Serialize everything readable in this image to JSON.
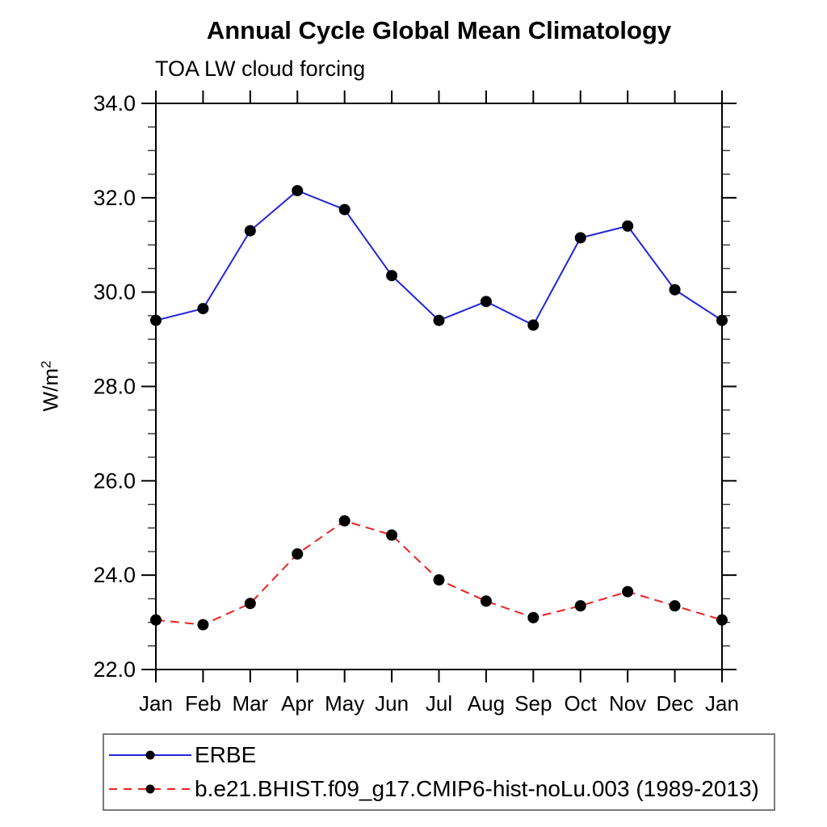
{
  "chart": {
    "title": "Annual Cycle Global Mean Climatology",
    "subtitle": "TOA LW cloud forcing",
    "ylabel_base": "W/m",
    "ylabel_exponent": "2"
  },
  "chart_data": {
    "type": "line",
    "title": "Annual Cycle Global Mean Climatology",
    "subtitle": "TOA LW cloud forcing",
    "xlabel": "",
    "ylabel": "W/m²",
    "categories": [
      "Jan",
      "Feb",
      "Mar",
      "Apr",
      "May",
      "Jun",
      "Jul",
      "Aug",
      "Sep",
      "Oct",
      "Nov",
      "Dec",
      "Jan"
    ],
    "ylim": [
      22.0,
      34.0
    ],
    "ytick_major_interval": 2.0,
    "ytick_minor_interval": 0.5,
    "ytick_labels": [
      "22.0",
      "24.0",
      "26.0",
      "28.0",
      "30.0",
      "32.0",
      "34.0"
    ],
    "grid": false,
    "legend_position": "bottom-left-box",
    "frame_color": "#000000",
    "series": [
      {
        "name": "ERBE",
        "color": "#2323dd",
        "line_style": "solid",
        "marker": "filled-circle",
        "marker_color": "#000000",
        "values": [
          29.4,
          29.65,
          31.3,
          32.15,
          31.75,
          30.35,
          29.4,
          29.8,
          29.3,
          31.15,
          31.4,
          30.05,
          29.4
        ]
      },
      {
        "name": "b.e21.BHIST.f09_g17.CMIP6-hist-noLu.003 (1989-2013)",
        "color": "#ee2222",
        "line_style": "dashed",
        "marker": "filled-circle",
        "marker_color": "#000000",
        "values": [
          23.05,
          22.95,
          23.4,
          24.45,
          25.15,
          24.85,
          23.9,
          23.45,
          23.1,
          23.35,
          23.65,
          23.35,
          23.05
        ]
      }
    ]
  }
}
